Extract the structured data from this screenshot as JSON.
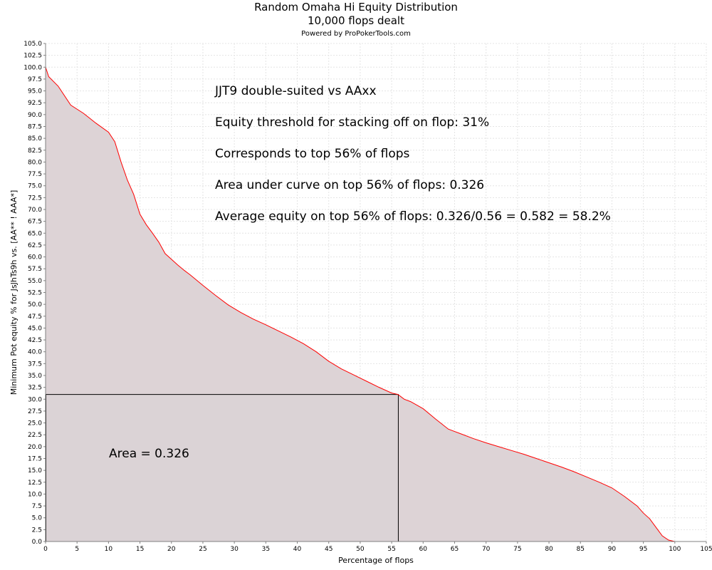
{
  "chart_data": {
    "type": "area",
    "title": "Random Omaha Hi Equity Distribution",
    "subtitle": "10,000 flops dealt",
    "credit": "Powered by ProPokerTools.com",
    "xlabel": "Percentage of flops",
    "ylabel": "Minimum Pot equity % for JsJhTs9h vs. [AA** ! AAA*]",
    "xlim": [
      0,
      105
    ],
    "ylim": [
      0,
      105
    ],
    "x_ticks": [
      0,
      5,
      10,
      15,
      20,
      25,
      30,
      35,
      40,
      45,
      50,
      55,
      60,
      65,
      70,
      75,
      80,
      85,
      90,
      95,
      100,
      105
    ],
    "x_tick_labels": [
      "0",
      "5",
      "10",
      "15",
      "20",
      "25",
      "30",
      "35",
      "40",
      "45",
      "50",
      "55",
      "60",
      "65",
      "70",
      "75",
      "80",
      "85",
      "90",
      "95",
      "100",
      "105"
    ],
    "y_ticks": [
      0,
      2.5,
      5,
      7.5,
      10,
      12.5,
      15,
      17.5,
      20,
      22.5,
      25,
      27.5,
      30,
      32.5,
      35,
      37.5,
      40,
      42.5,
      45,
      47.5,
      50,
      52.5,
      55,
      57.5,
      60,
      62.5,
      65,
      67.5,
      70,
      72.5,
      75,
      77.5,
      80,
      82.5,
      85,
      87.5,
      90,
      92.5,
      95,
      97.5,
      100,
      102.5,
      105
    ],
    "y_tick_labels": [
      "0.0",
      "2.5",
      "5.0",
      "7.5",
      "10.0",
      "12.5",
      "15.0",
      "17.5",
      "20.0",
      "22.5",
      "25.0",
      "27.5",
      "30.0",
      "32.5",
      "35.0",
      "37.5",
      "40.0",
      "42.5",
      "45.0",
      "47.5",
      "50.0",
      "52.5",
      "55.0",
      "57.5",
      "60.0",
      "62.5",
      "65.0",
      "67.5",
      "70.0",
      "72.5",
      "75.0",
      "77.5",
      "80.0",
      "82.5",
      "85.0",
      "87.5",
      "90.0",
      "92.5",
      "95.0",
      "97.5",
      "100.0",
      "102.5",
      "105.0"
    ],
    "grid": true,
    "series": [
      {
        "x": [
          0,
          0.5,
          2,
          4,
          6,
          8,
          10,
          11,
          12,
          13,
          14,
          15,
          16,
          17,
          18,
          19,
          20,
          21,
          22,
          23,
          25,
          27,
          29,
          31,
          33,
          35,
          37,
          39,
          41,
          43,
          45,
          47,
          49,
          51,
          53,
          55,
          56,
          57,
          58,
          60,
          62,
          64,
          66,
          68,
          70,
          72,
          74,
          76,
          78,
          80,
          82,
          84,
          86,
          88,
          90,
          92,
          94,
          95,
          96,
          97,
          98,
          99,
          100
        ],
        "y": [
          100,
          98,
          96,
          92,
          90.3,
          88.2,
          86.3,
          84.3,
          80,
          76.2,
          73.2,
          69,
          66.8,
          65,
          63.1,
          60.7,
          59.5,
          58.3,
          57.2,
          56.2,
          54,
          51.9,
          49.9,
          48.3,
          46.9,
          45.7,
          44.4,
          43.1,
          41.7,
          40,
          38,
          36.4,
          35.1,
          33.8,
          32.5,
          31.3,
          31,
          30,
          29.5,
          28,
          25.8,
          23.7,
          22.7,
          21.7,
          20.8,
          20,
          19.2,
          18.4,
          17.5,
          16.6,
          15.7,
          14.7,
          13.6,
          12.5,
          11.3,
          9.5,
          7.5,
          6,
          4.8,
          3,
          1.2,
          0.3,
          0
        ],
        "color": "#ff0000",
        "fill_color": "#ddd3d6"
      }
    ],
    "threshold": {
      "x": 56,
      "y": 31
    },
    "annotations": [
      "JJT9 double-suited vs AAxx",
      "Equity threshold for stacking off on flop: 31%",
      "Corresponds to top 56% of flops",
      "Area under curve on top 56% of flops: 0.326",
      "Average equity on top 56% of flops: 0.326/0.56 = 0.582 = 58.2%"
    ],
    "area_label": "Area = 0.326"
  }
}
